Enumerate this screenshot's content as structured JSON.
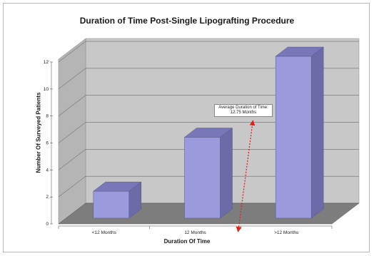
{
  "chart_data": {
    "type": "bar",
    "title": "Duration of Time Post-Single Lipografting Procedure",
    "xlabel": "Duration Of Time",
    "ylabel": "Number Of Surveyed Patients",
    "categories": [
      "<12 Months",
      "12 Months",
      ">12 Months"
    ],
    "values": [
      2,
      6,
      12
    ],
    "ylim": [
      0,
      12
    ],
    "yticks": [
      "0",
      "2",
      "4",
      "6",
      "8",
      "10",
      "12"
    ],
    "grid": true,
    "bar_color": "#9a9add",
    "annotation": "Average Duration of Time: 12.75 Months",
    "annotation_value": 12.75,
    "annotation_color": "#e02020"
  }
}
